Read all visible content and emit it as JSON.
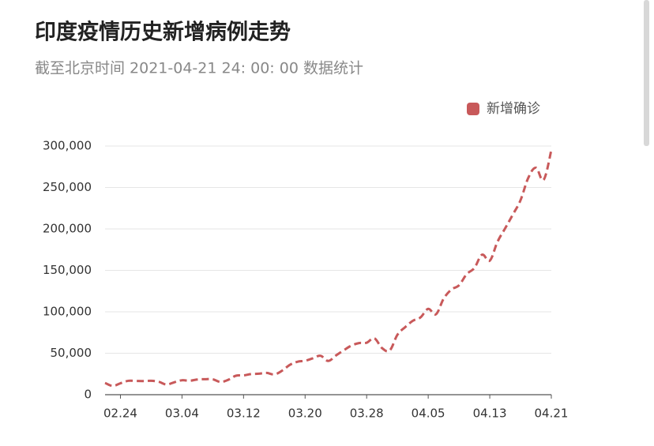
{
  "chart_data": {
    "type": "line",
    "title": "印度疫情历史新增病例走势",
    "subtitle": "截至北京时间 2021-04-21 24: 00: 00 数据统计",
    "categories": [
      null,
      null,
      "02.24",
      null,
      null,
      null,
      null,
      null,
      null,
      null,
      "03.04",
      null,
      null,
      null,
      null,
      null,
      null,
      null,
      "03.12",
      null,
      null,
      null,
      null,
      null,
      null,
      null,
      "03.20",
      null,
      null,
      null,
      null,
      null,
      null,
      null,
      "03.28",
      null,
      null,
      null,
      null,
      null,
      null,
      null,
      "04.05",
      null,
      null,
      null,
      null,
      null,
      null,
      null,
      "04.13",
      null,
      null,
      null,
      null,
      null,
      null,
      null,
      "04.21"
    ],
    "series": [
      {
        "name": "新增确诊",
        "color": "#c8595a",
        "values": [
          14199,
          10584,
          13742,
          16738,
          16577,
          16488,
          16752,
          15510,
          12286,
          14989,
          17407,
          16838,
          18327,
          18711,
          18599,
          15388,
          17921,
          22854,
          23285,
          24882,
          25320,
          26291,
          24492,
          28903,
          35871,
          39726,
          40953,
          43846,
          46951,
          40715,
          47262,
          53476,
          59118,
          62258,
          62714,
          68020,
          56211,
          53480,
          72330,
          81466,
          89129,
          93249,
          103558,
          96982,
          115736,
          126789,
          131968,
          145384,
          152879,
          168912,
          161736,
          184372,
          200739,
          217353,
          234692,
          261500,
          273810,
          259170,
          295041
        ]
      }
    ],
    "ylim": [
      0,
      300000
    ],
    "yticks": [
      0,
      {
        "value": 50000,
        "label": "50,000"
      },
      {
        "value": 100000,
        "label": "100,000"
      },
      {
        "value": 150000,
        "label": "150,000"
      },
      {
        "value": 200000,
        "label": "200,000"
      },
      {
        "value": 250000,
        "label": "250,000"
      },
      {
        "value": 300000,
        "label": "300,000"
      }
    ],
    "grid": true,
    "legend": "top-right",
    "line_style": "dashed"
  }
}
